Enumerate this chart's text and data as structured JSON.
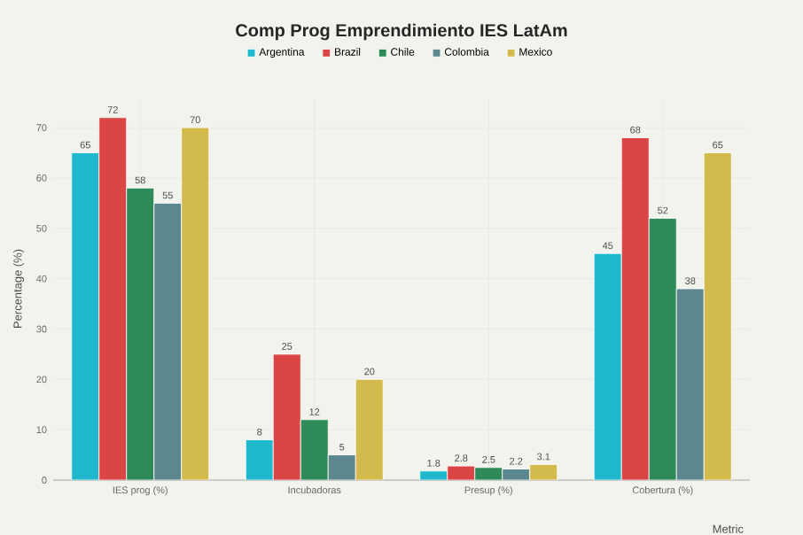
{
  "chart_data": {
    "type": "bar",
    "title": "Comp Prog Emprendimiento IES LatAm",
    "xlabel": "Metric",
    "ylabel": "Percentage (%)",
    "categories": [
      "IES prog (%)",
      "Incubadoras",
      "Presup (%)",
      "Cobertura (%)"
    ],
    "series": [
      {
        "name": "Argentina",
        "color": "#1fb8cd",
        "values": [
          65,
          8,
          1.8,
          45
        ]
      },
      {
        "name": "Brazil",
        "color": "#db4545",
        "values": [
          72,
          25,
          2.8,
          68
        ]
      },
      {
        "name": "Chile",
        "color": "#2e8b57",
        "values": [
          58,
          12,
          2.5,
          52
        ]
      },
      {
        "name": "Colombia",
        "color": "#5d878f",
        "values": [
          55,
          5,
          2.2,
          38
        ]
      },
      {
        "name": "Mexico",
        "color": "#d2ba4c",
        "values": [
          70,
          20,
          3.1,
          65
        ]
      }
    ],
    "ylim": [
      0,
      76
    ],
    "yticks": [
      0,
      10,
      20,
      30,
      40,
      50,
      60,
      70
    ],
    "grid": true,
    "legend": "top",
    "data_labels": true
  }
}
